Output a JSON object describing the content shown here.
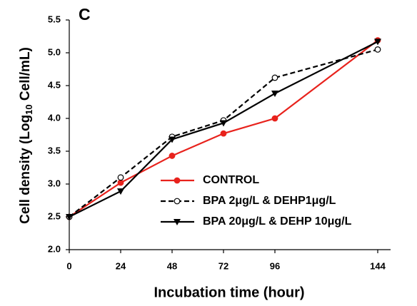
{
  "chart_data": {
    "type": "line",
    "panel_label": "C",
    "x_label": "Incubation time (hour)",
    "y_label": [
      "Cell density (Log",
      "10",
      " Cell/mL)"
    ],
    "x": [
      0,
      24,
      48,
      72,
      96,
      144
    ],
    "xlim": [
      0,
      150
    ],
    "xticks": [
      0,
      24,
      48,
      72,
      96,
      144
    ],
    "ylim": [
      2.0,
      5.5
    ],
    "yticks": [
      {
        "value": 2.0,
        "label": "2.0"
      },
      2.5,
      {
        "value": 3.0,
        "label": "3.0"
      },
      3.5,
      {
        "value": 4.0,
        "label": "4.0"
      },
      4.5,
      {
        "value": 5.0,
        "label": "5.0"
      },
      5.5
    ],
    "series": [
      {
        "name": "CONTROL",
        "color": "#e8221c",
        "marker": "circle-filled",
        "dash": false,
        "values": [
          2.5,
          3.02,
          3.43,
          3.77,
          4.0,
          5.19
        ]
      },
      {
        "name": "BPA 2μg/L & DEHP1μg/L",
        "color": "#000000",
        "marker": "circle-open",
        "dash": true,
        "values": [
          2.5,
          3.1,
          3.72,
          3.97,
          4.62,
          5.05
        ]
      },
      {
        "name": "BPA 20μg/L & DEHP 10μg/L",
        "color": "#000000",
        "marker": "triangle-down",
        "dash": false,
        "values": [
          2.5,
          2.89,
          3.68,
          3.93,
          4.38,
          5.17
        ]
      }
    ]
  }
}
